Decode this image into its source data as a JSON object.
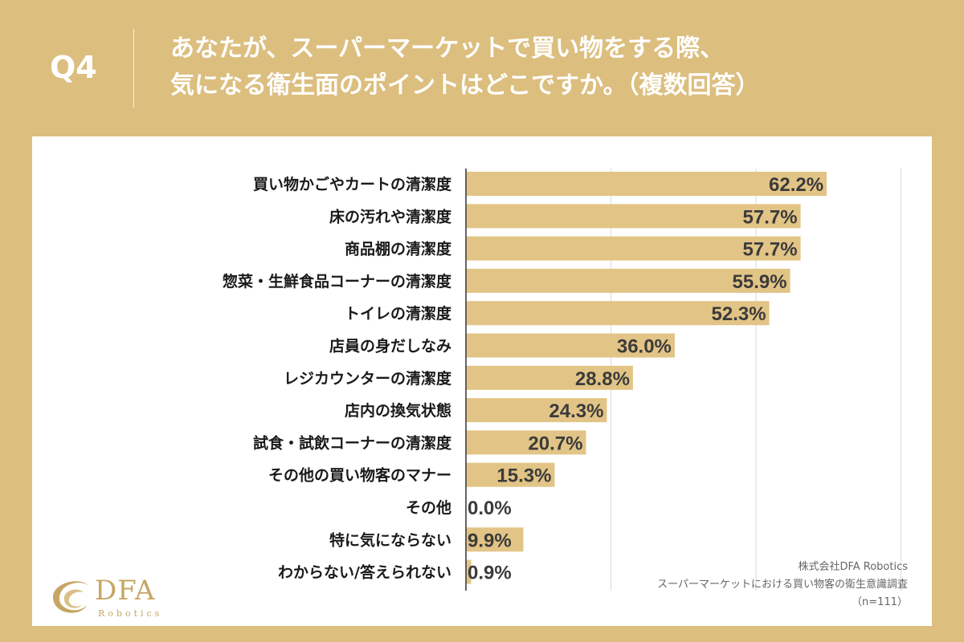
{
  "header": {
    "question_number": "Q4",
    "question_line1": "あなたが、スーパーマーケットで買い物をする際、",
    "question_line2": "気になる衛生面のポイントはどこですか。（複数回答）"
  },
  "colors": {
    "background": "#dcbe7f",
    "bar": "#e2c486",
    "panel": "#ffffff",
    "gridline": "#d9d9d9"
  },
  "chart_data": {
    "type": "bar",
    "orientation": "horizontal",
    "title": "あなたが、スーパーマーケットで買い物をする際、気になる衛生面のポイントはどこですか。（複数回答）",
    "xlim": [
      0,
      100
    ],
    "grid": true,
    "categories": [
      "買い物かごやカートの清潔度",
      "床の汚れや清潔度",
      "商品棚の清潔度",
      "惣菜・生鮮食品コーナーの清潔度",
      "トイレの清潔度",
      "店員の身だしなみ",
      "レジカウンターの清潔度",
      "店内の換気状態",
      "試食・試飲コーナーの清潔度",
      "その他の買い物客のマナー",
      "その他",
      "特に気にならない",
      "わからない/答えられない"
    ],
    "values": [
      62.2,
      57.7,
      57.7,
      55.9,
      52.3,
      36.0,
      28.8,
      24.3,
      20.7,
      15.3,
      0.0,
      9.9,
      0.9
    ],
    "value_labels": [
      "62.2%",
      "57.7%",
      "57.7%",
      "55.9%",
      "52.3%",
      "36.0%",
      "28.8%",
      "24.3%",
      "20.7%",
      "15.3%",
      "0.0%",
      "9.9%",
      "0.9%"
    ]
  },
  "source": {
    "company": "株式会社DFA Robotics",
    "survey": "スーパーマーケットにおける買い物客の衛生意識調査",
    "sample": "（n=111）"
  },
  "logo": {
    "name": "DFA",
    "sub": "Robotics"
  }
}
